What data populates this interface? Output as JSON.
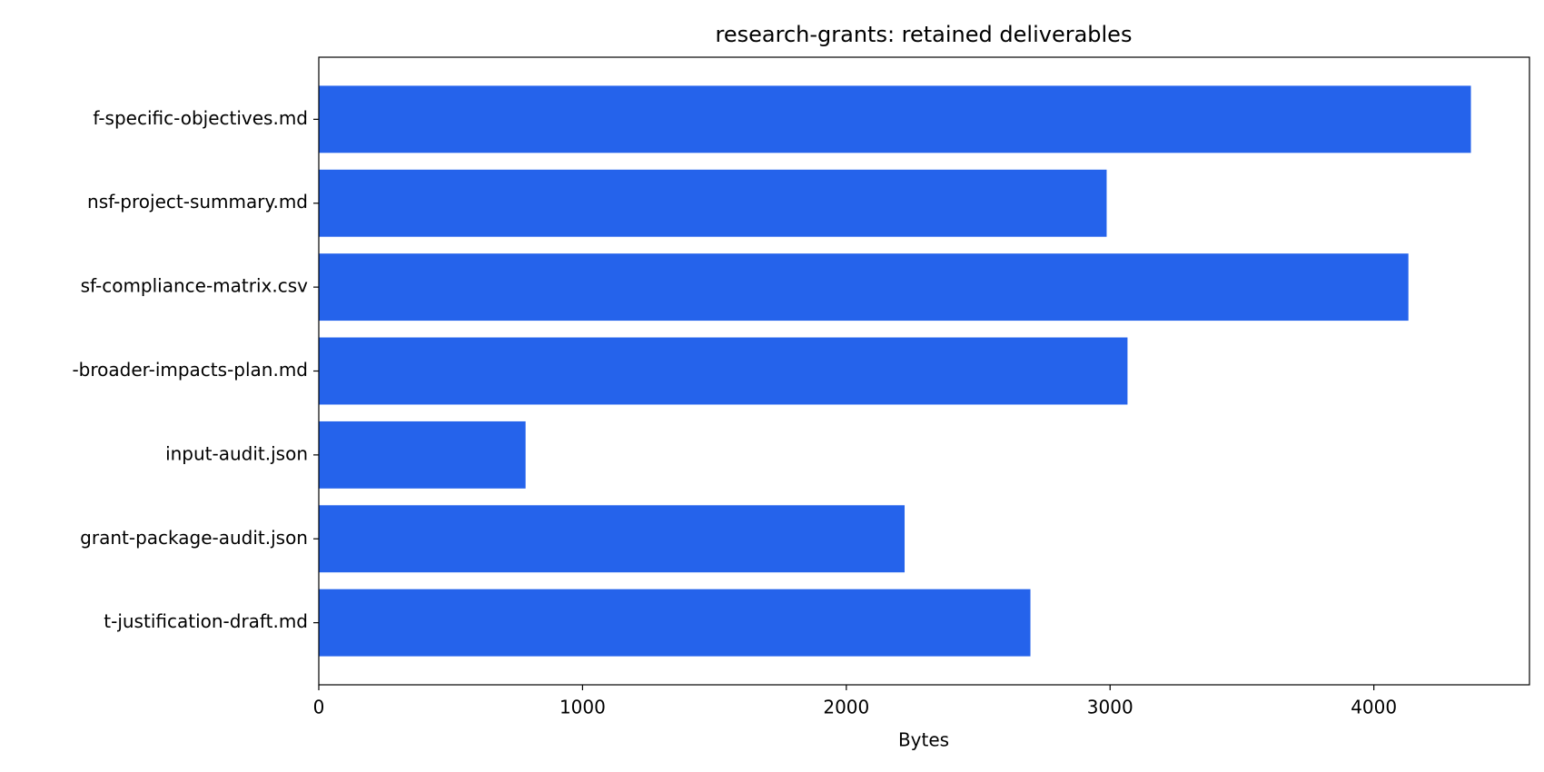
{
  "chart_data": {
    "type": "barh",
    "title": "research-grants: retained deliverables",
    "x_label": "Bytes",
    "categories": [
      "f-specific-objectives.md",
      "nsf-project-summary.md",
      "sf-compliance-matrix.csv",
      "-broader-impacts-plan.md",
      "input-audit.json",
      "grant-package-audit.json",
      "t-justification-draft.md"
    ],
    "values": [
      4368,
      2987,
      4131,
      3066,
      784,
      2221,
      2698
    ],
    "color": "#2563eb",
    "xlim": [
      0,
      4590
    ],
    "xticks": [
      0,
      1000,
      2000,
      3000,
      4000
    ],
    "grid": false
  }
}
